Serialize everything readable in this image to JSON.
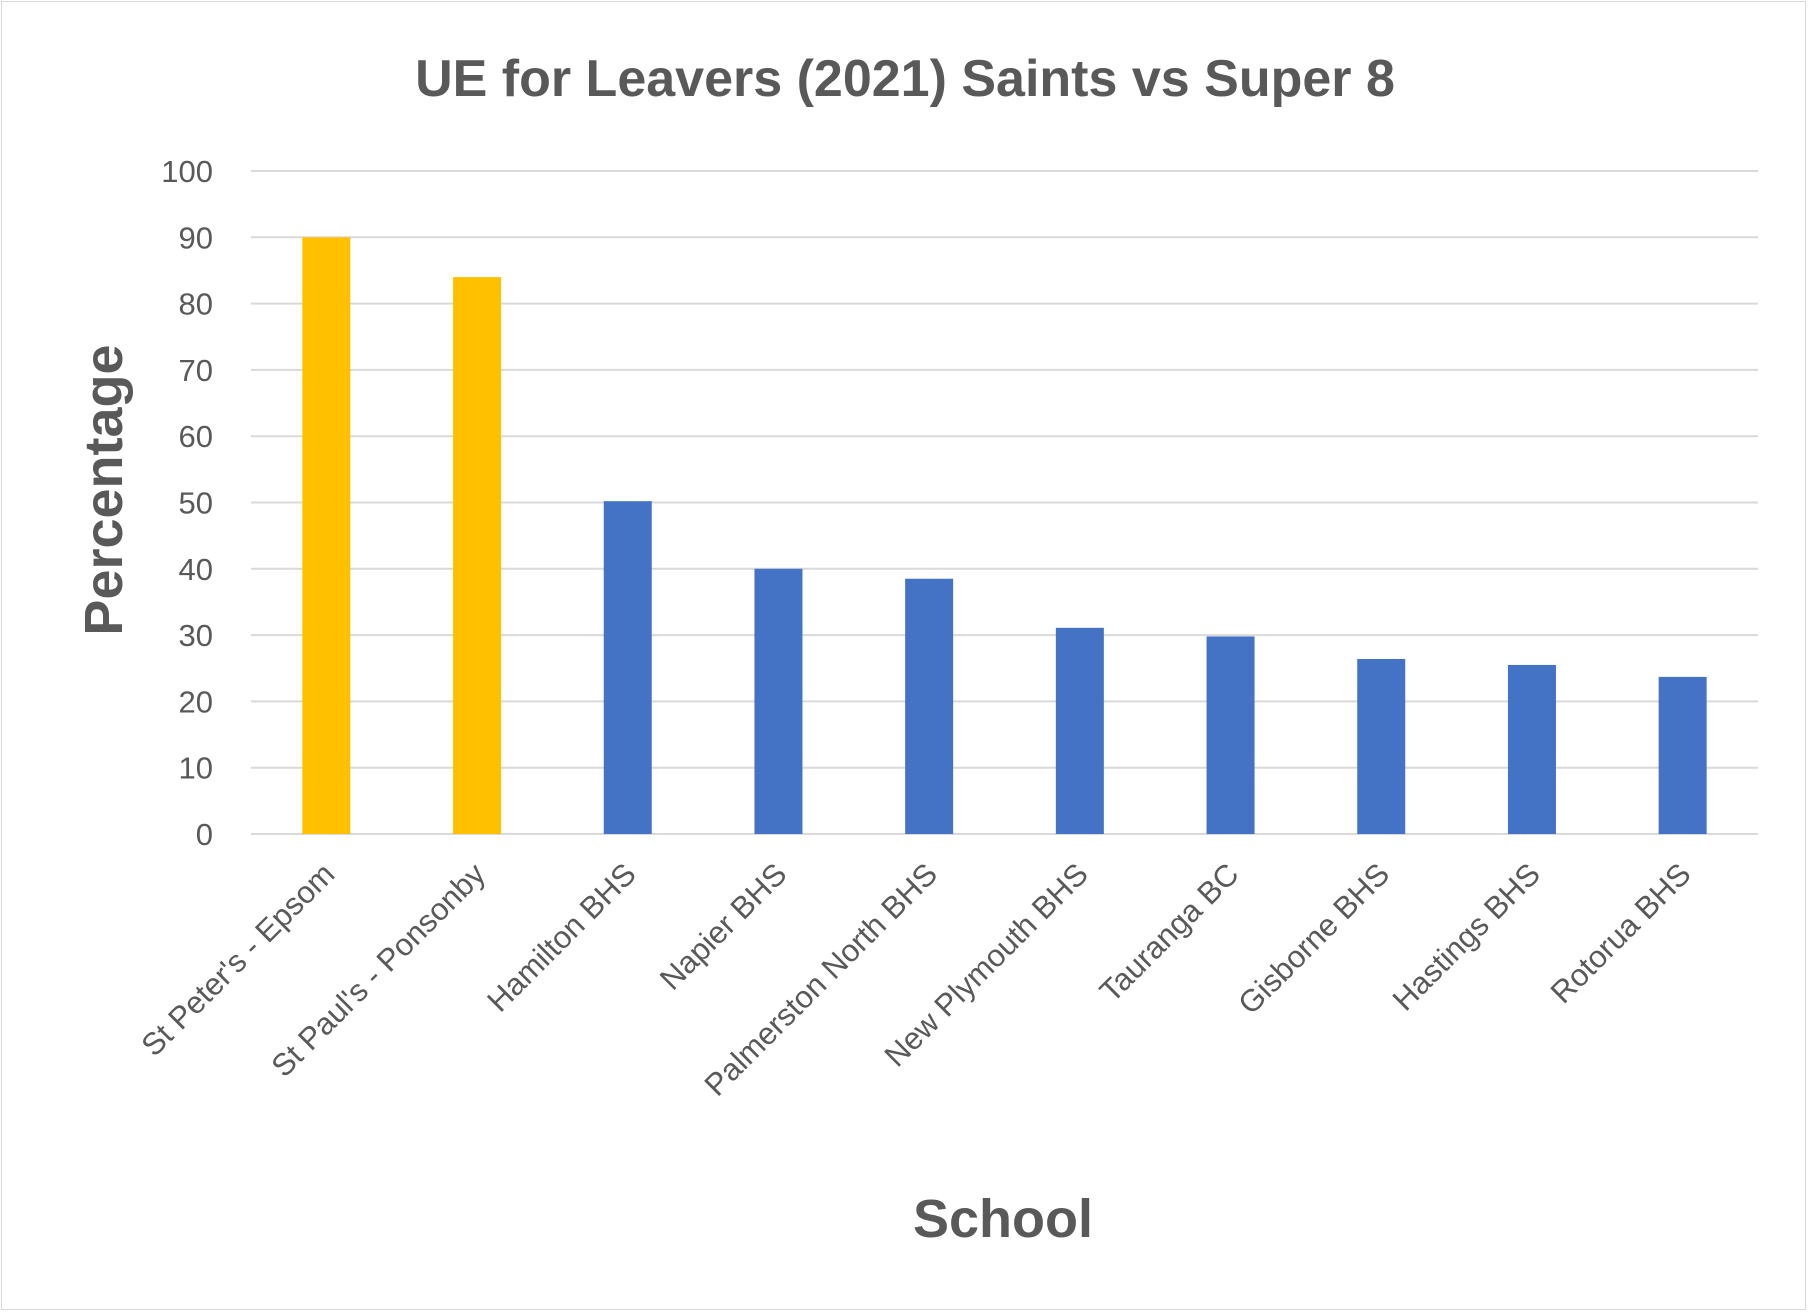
{
  "chart_data": {
    "type": "bar",
    "title": "UE for Leavers (2021) Saints vs Super 8",
    "xlabel": "School",
    "ylabel": "Percentage",
    "ylim": [
      0,
      100
    ],
    "yticks": [
      0,
      10,
      20,
      30,
      40,
      50,
      60,
      70,
      80,
      90,
      100
    ],
    "grid": true,
    "legend": "none",
    "categories": [
      "St Peter's - Epsom",
      "St Paul's - Ponsonby",
      "Hamilton BHS",
      "Napier BHS",
      "Palmerston North BHS",
      "New Plymouth BHS",
      "Tauranga BC",
      "Gisborne BHS",
      "Hastings BHS",
      "Rotorua BHS"
    ],
    "values": [
      90,
      84,
      50.2,
      40,
      38.5,
      31.1,
      29.8,
      26.4,
      25.5,
      23.7
    ],
    "colors": [
      "#FFC000",
      "#FFC000",
      "#4472C4",
      "#4472C4",
      "#4472C4",
      "#4472C4",
      "#4472C4",
      "#4472C4",
      "#4472C4",
      "#4472C4"
    ],
    "gridline_color": "#d9d9d9",
    "text_color": "#595959"
  }
}
